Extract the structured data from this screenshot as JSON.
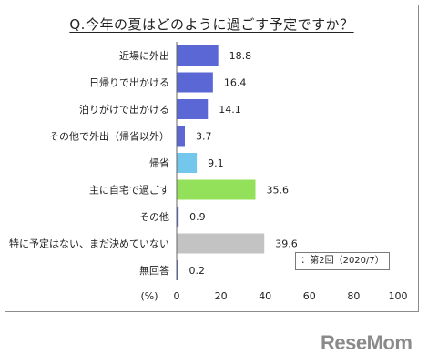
{
  "chart_data": {
    "type": "bar",
    "orientation": "horizontal",
    "title": "Q.今年の夏はどのように過ごす予定ですか？",
    "unit_label": "(%)",
    "categories": [
      "近場に外出",
      "日帰りで出かける",
      "泊りがけで出かける",
      "その他で外出（帰省以外）",
      "帰省",
      "主に自宅で過ごす",
      "その他",
      "特に予定はない、まだ決めていない",
      "無回答"
    ],
    "values": [
      18.8,
      16.4,
      14.1,
      3.7,
      9.1,
      35.6,
      0.9,
      39.6,
      0.2
    ],
    "value_labels": [
      "18.8",
      "16.4",
      "14.1",
      "3.7",
      "9.1",
      "35.6",
      "0.9",
      "39.6",
      "0.2"
    ],
    "bar_colors": [
      "#5b67d4",
      "#5b67d4",
      "#5b67d4",
      "#5b67d4",
      "#73c7ec",
      "#93e05a",
      "#5b67d4",
      "#c3c3c3",
      "#5b67d4"
    ],
    "xlim": [
      0,
      100
    ],
    "xticks": [
      0,
      20,
      40,
      60,
      80,
      100
    ],
    "xtick_labels": [
      "0",
      "20",
      "40",
      "60",
      "80",
      "100"
    ],
    "grid": false,
    "legend": {
      "text": "：第2回（2020/7）",
      "placement": "bottom-right"
    }
  },
  "brand": {
    "logo_text": "ReseMom",
    "logo_color": "#8a8a8a"
  }
}
